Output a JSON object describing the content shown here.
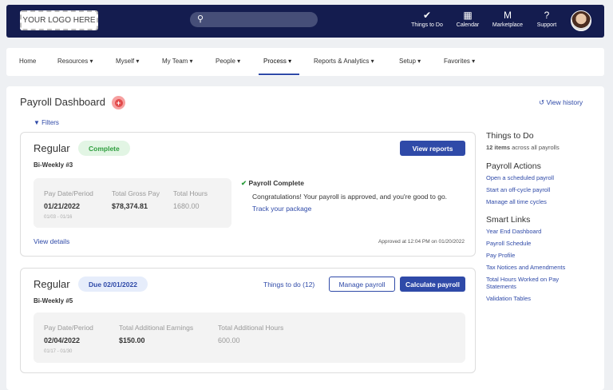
{
  "header": {
    "logo": "YOUR LOGO HERE",
    "search_placeholder": "",
    "icons": [
      {
        "name": "things-to-do",
        "label": "Things to Do",
        "glyph": "✔"
      },
      {
        "name": "calendar",
        "label": "Calendar",
        "glyph": "▦"
      },
      {
        "name": "marketplace",
        "label": "Marketplace",
        "glyph": "M"
      },
      {
        "name": "support",
        "label": "Support",
        "glyph": "?"
      }
    ]
  },
  "nav": {
    "items": [
      "Home",
      "Resources ▾",
      "Myself ▾",
      "My Team ▾",
      "People ▾",
      "Process ▾",
      "Reports & Analytics ▾",
      "Setup ▾",
      "Favorites ▾"
    ],
    "active": "Process"
  },
  "page": {
    "title": "Payroll Dashboard",
    "filters": "Filters",
    "view_history": "View history"
  },
  "cards": [
    {
      "title": "Regular",
      "badge": "Complete",
      "subtitle": "Bi-Weekly #3",
      "button": "View reports",
      "fields": [
        {
          "label": "Pay Date/Period",
          "value": "01/21/2022",
          "sub": "01/03 - 01/16"
        },
        {
          "label": "Total Gross Pay",
          "value": "$78,374.81"
        },
        {
          "label": "Total Hours",
          "value": "1680.00"
        }
      ],
      "status_title": "Payroll Complete",
      "status_text": "Congratulations! Your payroll is approved, and you're good to go.",
      "status_link": "Track your package",
      "details_link": "View details",
      "approved": "Approved at 12:04 PM on 01/20/2022"
    },
    {
      "title": "Regular",
      "badge": "Due 02/01/2022",
      "subtitle": "Bi-Weekly #5",
      "things_link": "Things to do (12)",
      "manage": "Manage payroll",
      "calculate": "Calculate payroll",
      "fields": [
        {
          "label": "Pay Date/Period",
          "value": "02/04/2022",
          "sub": "01/17 - 01/30"
        },
        {
          "label": "Total Additional Earnings",
          "value": "$150.00"
        },
        {
          "label": "Total Additional Hours",
          "value": "600.00"
        }
      ]
    }
  ],
  "sidebar": {
    "things_title": "Things to Do",
    "things_count": "12 items",
    "things_suffix": " across all payrolls",
    "actions_title": "Payroll Actions",
    "actions": [
      "Open a scheduled payroll",
      "Start an off-cycle payroll",
      "Manage all time cycles"
    ],
    "smart_title": "Smart Links",
    "smart": [
      "Year End Dashboard",
      "Payroll Schedule",
      "Pay Profile",
      "Tax Notices and Amendments",
      "Total Hours Worked on Pay Statements",
      "Validation Tables"
    ]
  },
  "colors": {
    "header": "#141c4f",
    "primary": "#2f4aa8",
    "success": "#2e9e3e",
    "danger": "#e24b4b"
  }
}
